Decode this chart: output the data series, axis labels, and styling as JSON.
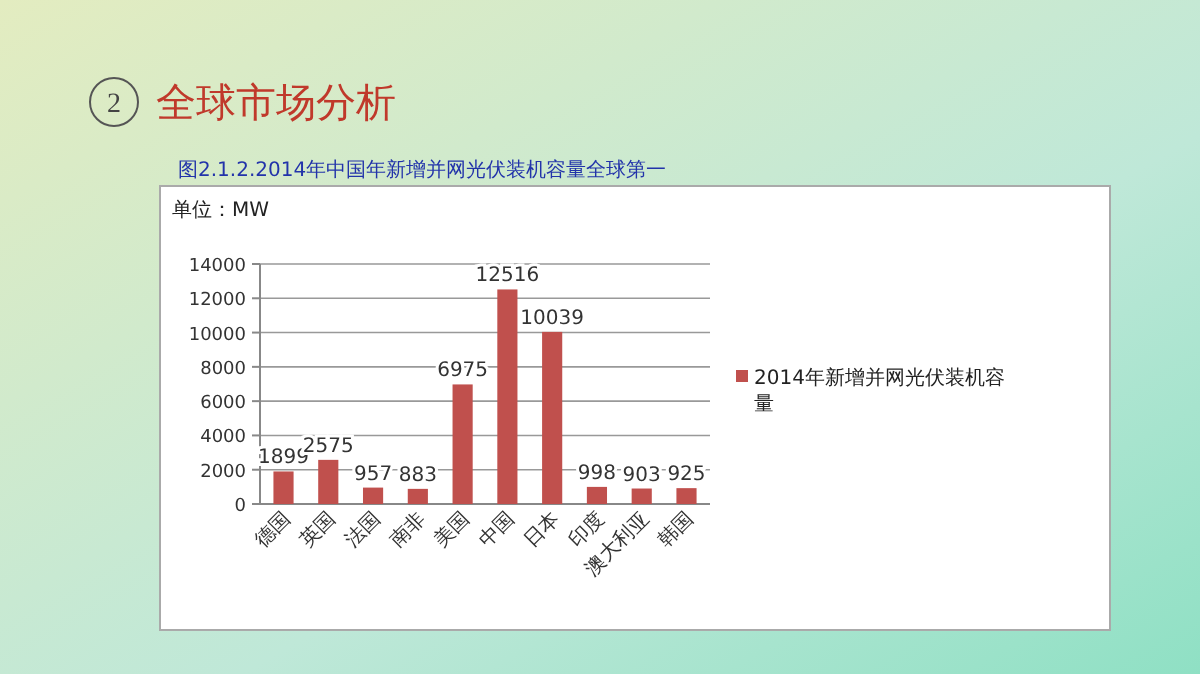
{
  "chart_data": {
    "type": "bar",
    "title": "全球市场分析",
    "subtitle": "图2.1.2.2014年中国年新增并网光伏装机容量全球第一",
    "ylabel": "单位：MW",
    "annotations": [
      "2"
    ],
    "categories": [
      "德国",
      "英国",
      "法国",
      "南非",
      "美国",
      "中国",
      "日本",
      "印度",
      "澳大利亚",
      "韩国"
    ],
    "series": [
      {
        "name": "2014年新增并网光伏装机容量",
        "color": "#c0504d",
        "values": [
          1899,
          2575,
          957,
          883,
          6975,
          12516,
          10039,
          998,
          903,
          925
        ]
      }
    ],
    "ylim": [
      0,
      14000
    ],
    "yticks": [
      0,
      2000,
      4000,
      6000,
      8000,
      10000,
      12000,
      14000
    ],
    "grid": "y",
    "legend": "right",
    "data_labels": true
  }
}
